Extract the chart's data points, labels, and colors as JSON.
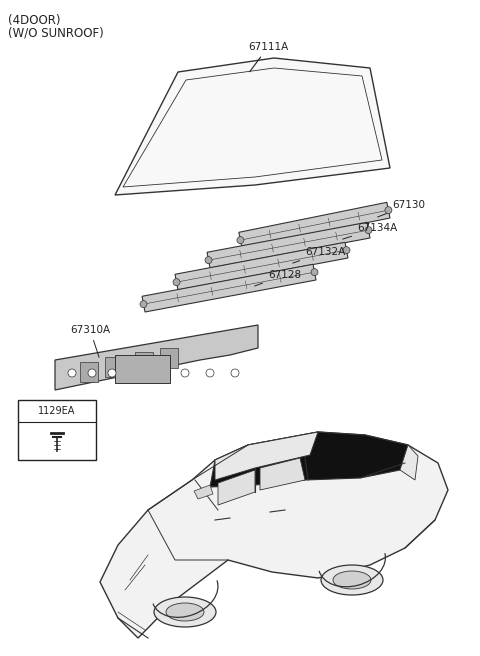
{
  "title_line1": "(4DOOR)",
  "title_line2": "(W/O SUNROOF)",
  "bg_color": "#ffffff",
  "lc": "#222222",
  "pc": "#333333",
  "label_fs": 7.5,
  "title_fs": 8.5,
  "fastener_label": "1129EA"
}
